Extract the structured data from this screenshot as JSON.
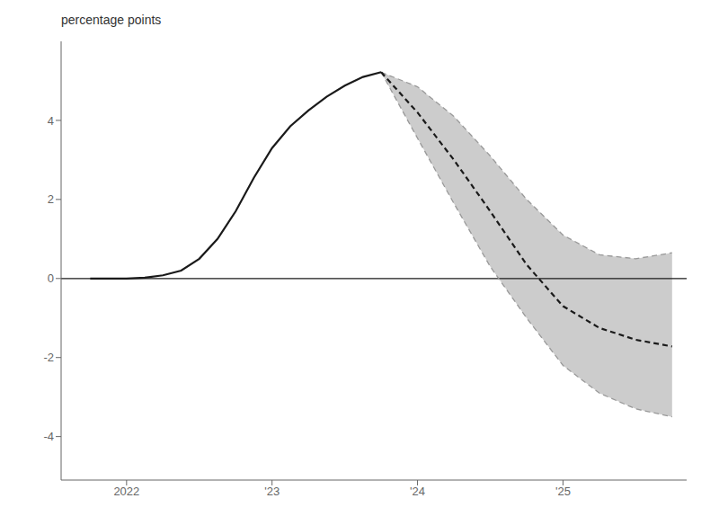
{
  "chart_data": {
    "type": "line",
    "ylabel": "percentage points",
    "x": [
      2021.75,
      2021.875,
      2022.0,
      2022.125,
      2022.25,
      2022.375,
      2022.5,
      2022.625,
      2022.75,
      2022.875,
      2023.0,
      2023.125,
      2023.25,
      2023.375,
      2023.5,
      2023.625,
      2023.75,
      2024.0,
      2024.25,
      2024.5,
      2024.75,
      2025.0,
      2025.25,
      2025.5,
      2025.75
    ],
    "series": [
      {
        "type": "band",
        "color": "#cccccc",
        "lower": [
          null,
          null,
          null,
          null,
          null,
          null,
          null,
          null,
          null,
          null,
          null,
          null,
          null,
          null,
          null,
          null,
          5.22,
          3.55,
          1.9,
          0.3,
          -1.0,
          -2.2,
          -2.9,
          -3.3,
          -3.5
        ],
        "upper": [
          null,
          null,
          null,
          null,
          null,
          null,
          null,
          null,
          null,
          null,
          null,
          null,
          null,
          null,
          null,
          null,
          5.22,
          4.85,
          4.1,
          3.1,
          2.0,
          1.1,
          0.6,
          0.5,
          0.65
        ]
      },
      {
        "type": "line",
        "color": "#999999",
        "line_style": "dashed",
        "values": [
          null,
          null,
          null,
          null,
          null,
          null,
          null,
          null,
          null,
          null,
          null,
          null,
          null,
          null,
          null,
          null,
          5.22,
          4.85,
          4.1,
          3.1,
          2.0,
          1.1,
          0.6,
          0.5,
          0.65
        ]
      },
      {
        "type": "line",
        "color": "#999999",
        "line_style": "dashed",
        "values": [
          null,
          null,
          null,
          null,
          null,
          null,
          null,
          null,
          null,
          null,
          null,
          null,
          null,
          null,
          null,
          null,
          5.22,
          3.55,
          1.9,
          0.3,
          -1.0,
          -2.2,
          -2.9,
          -3.3,
          -3.5
        ]
      },
      {
        "type": "line",
        "color": "#1a1a1a",
        "line_style": "solid",
        "values": [
          0.0,
          0.0,
          0.0,
          0.02,
          0.08,
          0.2,
          0.5,
          1.0,
          1.7,
          2.55,
          3.3,
          3.85,
          4.25,
          4.6,
          4.88,
          5.1,
          5.22,
          null,
          null,
          null,
          null,
          null,
          null,
          null,
          null
        ]
      },
      {
        "type": "line",
        "color": "#1a1a1a",
        "line_style": "dashed",
        "values": [
          null,
          null,
          null,
          null,
          null,
          null,
          null,
          null,
          null,
          null,
          null,
          null,
          null,
          null,
          null,
          null,
          5.22,
          4.2,
          3.0,
          1.7,
          0.35,
          -0.7,
          -1.25,
          -1.55,
          -1.72
        ]
      }
    ],
    "hlines": [
      {
        "value": 0,
        "color": "#1a1a1a"
      }
    ],
    "xlim": [
      2021.55,
      2025.85
    ],
    "xticks": [
      2022,
      {
        "value": 2023,
        "label": "'23"
      },
      {
        "value": 2024,
        "label": "'24"
      },
      {
        "value": 2025,
        "label": "'25"
      }
    ],
    "ylim": [
      -5.1,
      6.0
    ],
    "yticks": [
      -4,
      -2,
      0,
      2,
      4
    ],
    "grid": false
  }
}
